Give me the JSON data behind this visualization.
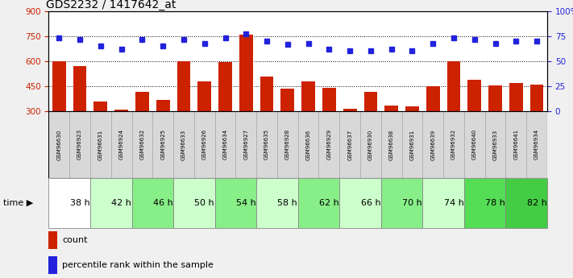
{
  "title": "GDS2232 / 1417642_at",
  "samples": [
    "GSM96630",
    "GSM96923",
    "GSM96631",
    "GSM96924",
    "GSM96632",
    "GSM96925",
    "GSM96633",
    "GSM96926",
    "GSM96634",
    "GSM96927",
    "GSM96635",
    "GSM96928",
    "GSM96636",
    "GSM96929",
    "GSM96637",
    "GSM96930",
    "GSM96638",
    "GSM96931",
    "GSM96639",
    "GSM96932",
    "GSM96640",
    "GSM96933",
    "GSM96641",
    "GSM96934"
  ],
  "counts": [
    600,
    570,
    360,
    310,
    415,
    370,
    600,
    480,
    595,
    760,
    510,
    435,
    480,
    440,
    315,
    415,
    335,
    330,
    450,
    600,
    490,
    455,
    470,
    460
  ],
  "percentiles": [
    73,
    72,
    65,
    62,
    72,
    65,
    72,
    68,
    73,
    77,
    70,
    67,
    68,
    62,
    60,
    60,
    62,
    60,
    68,
    73,
    72,
    68,
    70,
    70
  ],
  "time_groups": [
    {
      "label": "38 h",
      "start": 0,
      "end": 2,
      "color": "#ffffff"
    },
    {
      "label": "42 h",
      "start": 2,
      "end": 4,
      "color": "#ccffcc"
    },
    {
      "label": "46 h",
      "start": 4,
      "end": 6,
      "color": "#88ee88"
    },
    {
      "label": "50 h",
      "start": 6,
      "end": 8,
      "color": "#ccffcc"
    },
    {
      "label": "54 h",
      "start": 8,
      "end": 10,
      "color": "#88ee88"
    },
    {
      "label": "58 h",
      "start": 10,
      "end": 12,
      "color": "#ccffcc"
    },
    {
      "label": "62 h",
      "start": 12,
      "end": 14,
      "color": "#88ee88"
    },
    {
      "label": "66 h",
      "start": 14,
      "end": 16,
      "color": "#ccffcc"
    },
    {
      "label": "70 h",
      "start": 16,
      "end": 18,
      "color": "#88ee88"
    },
    {
      "label": "74 h",
      "start": 18,
      "end": 20,
      "color": "#ccffcc"
    },
    {
      "label": "78 h",
      "start": 20,
      "end": 22,
      "color": "#55dd55"
    },
    {
      "label": "82 h",
      "start": 22,
      "end": 24,
      "color": "#44cc44"
    }
  ],
  "ylim_left": [
    300,
    900
  ],
  "ylim_right": [
    0,
    100
  ],
  "yticks_left": [
    300,
    450,
    600,
    750,
    900
  ],
  "yticks_right": [
    0,
    25,
    50,
    75,
    100
  ],
  "bar_color": "#cc2200",
  "dot_color": "#2222dd",
  "sample_box_color": "#d8d8d8",
  "plot_bg": "#ffffff",
  "fig_bg": "#f0f0f0",
  "title_fontsize": 10,
  "left_tick_color": "#cc2200",
  "right_tick_color": "#2222dd",
  "gridline_vals": [
    450,
    600,
    750
  ]
}
